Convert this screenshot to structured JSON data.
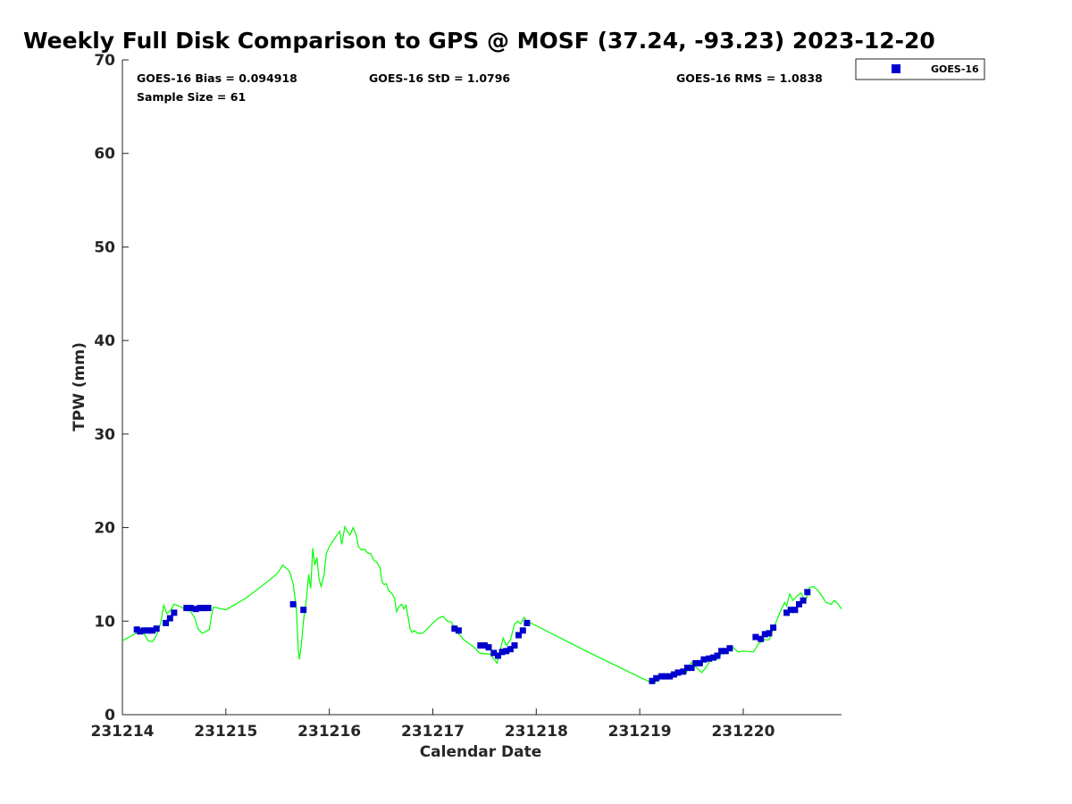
{
  "chart_data": {
    "type": "scatter",
    "title": "Weekly Full Disk Comparison to GPS @ MOSF (37.24, -93.23) 2023-12-20",
    "xlabel": "Calendar Date",
    "ylabel": "TPW (mm)",
    "xlim": [
      0,
      6.95
    ],
    "ylim": [
      0,
      70
    ],
    "x_tick_values": [
      0,
      1,
      2,
      3,
      4,
      5,
      6
    ],
    "x_tick_labels": [
      "231214",
      "231215",
      "231216",
      "231217",
      "231218",
      "231219",
      "231220"
    ],
    "y_ticks": [
      0,
      10,
      20,
      30,
      40,
      50,
      60,
      70
    ],
    "x_units_note": "days since 2023-12-14 00:00",
    "grid": false,
    "legend_position": "top-right",
    "stats": {
      "bias": "GOES-16 Bias = 0.094918",
      "std": "GOES-16 StD = 1.0796",
      "rms": "GOES-16 RMS = 1.0838",
      "sample": "Sample Size = 61"
    },
    "series": [
      {
        "name": "GOES-16",
        "marker": "square",
        "color": "#0000cc",
        "points": [
          [
            0.14,
            9.1
          ],
          [
            0.17,
            8.9
          ],
          [
            0.21,
            9.0
          ],
          [
            0.25,
            9.0
          ],
          [
            0.29,
            9.0
          ],
          [
            0.33,
            9.2
          ],
          [
            0.42,
            9.8
          ],
          [
            0.46,
            10.3
          ],
          [
            0.5,
            10.9
          ],
          [
            0.62,
            11.4
          ],
          [
            0.66,
            11.4
          ],
          [
            0.71,
            11.3
          ],
          [
            0.75,
            11.4
          ],
          [
            0.79,
            11.4
          ],
          [
            0.83,
            11.4
          ],
          [
            1.65,
            11.8
          ],
          [
            1.75,
            11.2
          ],
          [
            3.21,
            9.2
          ],
          [
            3.25,
            9.0
          ],
          [
            3.46,
            7.4
          ],
          [
            3.5,
            7.4
          ],
          [
            3.54,
            7.2
          ],
          [
            3.59,
            6.6
          ],
          [
            3.63,
            6.3
          ],
          [
            3.67,
            6.7
          ],
          [
            3.71,
            6.8
          ],
          [
            3.75,
            7.0
          ],
          [
            3.79,
            7.4
          ],
          [
            3.83,
            8.5
          ],
          [
            3.87,
            9.0
          ],
          [
            3.91,
            9.8
          ],
          [
            5.12,
            3.6
          ],
          [
            5.16,
            3.9
          ],
          [
            5.21,
            4.1
          ],
          [
            5.25,
            4.1
          ],
          [
            5.29,
            4.1
          ],
          [
            5.33,
            4.3
          ],
          [
            5.37,
            4.5
          ],
          [
            5.42,
            4.6
          ],
          [
            5.46,
            5.0
          ],
          [
            5.5,
            5.0
          ],
          [
            5.54,
            5.5
          ],
          [
            5.58,
            5.5
          ],
          [
            5.62,
            5.9
          ],
          [
            5.67,
            6.0
          ],
          [
            5.71,
            6.1
          ],
          [
            5.75,
            6.3
          ],
          [
            5.79,
            6.8
          ],
          [
            5.83,
            6.8
          ],
          [
            5.87,
            7.1
          ],
          [
            6.12,
            8.3
          ],
          [
            6.17,
            8.1
          ],
          [
            6.21,
            8.6
          ],
          [
            6.25,
            8.7
          ],
          [
            6.29,
            9.3
          ],
          [
            6.42,
            10.9
          ],
          [
            6.46,
            11.2
          ],
          [
            6.5,
            11.2
          ],
          [
            6.54,
            11.8
          ],
          [
            6.58,
            12.2
          ],
          [
            6.62,
            13.1
          ]
        ]
      },
      {
        "color": "#00ff00",
        "points": [
          [
            0.0,
            7.9
          ],
          [
            0.05,
            8.2
          ],
          [
            0.1,
            8.5
          ],
          [
            0.16,
            8.9
          ],
          [
            0.21,
            8.6
          ],
          [
            0.25,
            7.9
          ],
          [
            0.29,
            7.8
          ],
          [
            0.33,
            8.5
          ],
          [
            0.37,
            9.8
          ],
          [
            0.4,
            11.7
          ],
          [
            0.43,
            10.8
          ],
          [
            0.47,
            11.2
          ],
          [
            0.5,
            11.8
          ],
          [
            0.55,
            11.6
          ],
          [
            0.6,
            11.3
          ],
          [
            0.65,
            11.2
          ],
          [
            0.7,
            10.3
          ],
          [
            0.73,
            9.2
          ],
          [
            0.77,
            8.7
          ],
          [
            0.81,
            8.9
          ],
          [
            0.84,
            9.1
          ],
          [
            0.86,
            10.5
          ],
          [
            0.88,
            11.5
          ],
          [
            0.92,
            11.4
          ],
          [
            1.0,
            11.2
          ],
          [
            1.2,
            12.5
          ],
          [
            1.4,
            14.2
          ],
          [
            1.5,
            15.1
          ],
          [
            1.55,
            16.0
          ],
          [
            1.6,
            15.5
          ],
          [
            1.62,
            15.2
          ],
          [
            1.65,
            14.0
          ],
          [
            1.68,
            11.5
          ],
          [
            1.7,
            7.0
          ],
          [
            1.71,
            5.9
          ],
          [
            1.73,
            7.5
          ],
          [
            1.75,
            10.0
          ],
          [
            1.78,
            12.5
          ],
          [
            1.8,
            15.0
          ],
          [
            1.82,
            13.5
          ],
          [
            1.84,
            17.8
          ],
          [
            1.86,
            16.0
          ],
          [
            1.88,
            16.8
          ],
          [
            1.9,
            14.5
          ],
          [
            1.92,
            13.7
          ],
          [
            1.95,
            15.0
          ],
          [
            1.97,
            17.2
          ],
          [
            2.0,
            18.0
          ],
          [
            2.05,
            18.8
          ],
          [
            2.1,
            19.6
          ],
          [
            2.12,
            18.2
          ],
          [
            2.15,
            20.1
          ],
          [
            2.18,
            19.5
          ],
          [
            2.2,
            19.2
          ],
          [
            2.23,
            20.0
          ],
          [
            2.26,
            19.2
          ],
          [
            2.28,
            18.0
          ],
          [
            2.31,
            17.6
          ],
          [
            2.34,
            17.7
          ],
          [
            2.37,
            17.3
          ],
          [
            2.4,
            17.2
          ],
          [
            2.43,
            16.5
          ],
          [
            2.46,
            16.3
          ],
          [
            2.49,
            15.7
          ],
          [
            2.51,
            14.2
          ],
          [
            2.53,
            13.9
          ],
          [
            2.55,
            14.0
          ],
          [
            2.57,
            13.3
          ],
          [
            2.6,
            13.0
          ],
          [
            2.63,
            12.5
          ],
          [
            2.65,
            11.0
          ],
          [
            2.67,
            11.5
          ],
          [
            2.7,
            11.8
          ],
          [
            2.72,
            11.3
          ],
          [
            2.74,
            11.7
          ],
          [
            2.76,
            10.5
          ],
          [
            2.78,
            9.2
          ],
          [
            2.8,
            8.8
          ],
          [
            2.82,
            9.0
          ],
          [
            2.85,
            8.7
          ],
          [
            2.9,
            8.7
          ],
          [
            2.95,
            9.2
          ],
          [
            3.0,
            9.8
          ],
          [
            3.05,
            10.3
          ],
          [
            3.1,
            10.5
          ],
          [
            3.14,
            10.0
          ],
          [
            3.18,
            9.9
          ],
          [
            3.22,
            9.0
          ],
          [
            3.3,
            8.0
          ],
          [
            3.4,
            7.2
          ],
          [
            3.45,
            6.6
          ],
          [
            3.5,
            6.5
          ],
          [
            3.55,
            6.5
          ],
          [
            3.58,
            6.1
          ],
          [
            3.62,
            5.5
          ],
          [
            3.65,
            6.8
          ],
          [
            3.68,
            8.2
          ],
          [
            3.71,
            7.4
          ],
          [
            3.75,
            8.0
          ],
          [
            3.79,
            9.7
          ],
          [
            3.82,
            10.0
          ],
          [
            3.85,
            9.7
          ],
          [
            3.88,
            10.4
          ],
          [
            3.91,
            10.0
          ],
          [
            4.0,
            9.5
          ],
          [
            4.5,
            6.7
          ],
          [
            5.0,
            4.0
          ],
          [
            5.12,
            3.4
          ],
          [
            5.17,
            3.6
          ],
          [
            5.21,
            4.1
          ],
          [
            5.25,
            4.0
          ],
          [
            5.3,
            4.3
          ],
          [
            5.35,
            4.6
          ],
          [
            5.4,
            4.7
          ],
          [
            5.45,
            4.5
          ],
          [
            5.5,
            5.6
          ],
          [
            5.55,
            5.0
          ],
          [
            5.6,
            4.5
          ],
          [
            5.65,
            5.2
          ],
          [
            5.7,
            6.2
          ],
          [
            5.75,
            5.9
          ],
          [
            5.8,
            6.7
          ],
          [
            5.85,
            6.8
          ],
          [
            5.9,
            7.2
          ],
          [
            5.95,
            6.7
          ],
          [
            6.0,
            6.8
          ],
          [
            6.1,
            6.7
          ],
          [
            6.15,
            7.6
          ],
          [
            6.2,
            8.0
          ],
          [
            6.25,
            8.0
          ],
          [
            6.3,
            9.4
          ],
          [
            6.35,
            10.8
          ],
          [
            6.4,
            12.0
          ],
          [
            6.42,
            11.6
          ],
          [
            6.45,
            12.9
          ],
          [
            6.48,
            12.2
          ],
          [
            6.52,
            12.7
          ],
          [
            6.56,
            13.0
          ],
          [
            6.6,
            12.0
          ],
          [
            6.64,
            13.6
          ],
          [
            6.68,
            13.7
          ],
          [
            6.72,
            13.3
          ],
          [
            6.76,
            12.7
          ],
          [
            6.8,
            12.0
          ],
          [
            6.85,
            11.8
          ],
          [
            6.88,
            12.2
          ],
          [
            6.91,
            11.9
          ],
          [
            6.95,
            11.3
          ]
        ]
      }
    ]
  }
}
